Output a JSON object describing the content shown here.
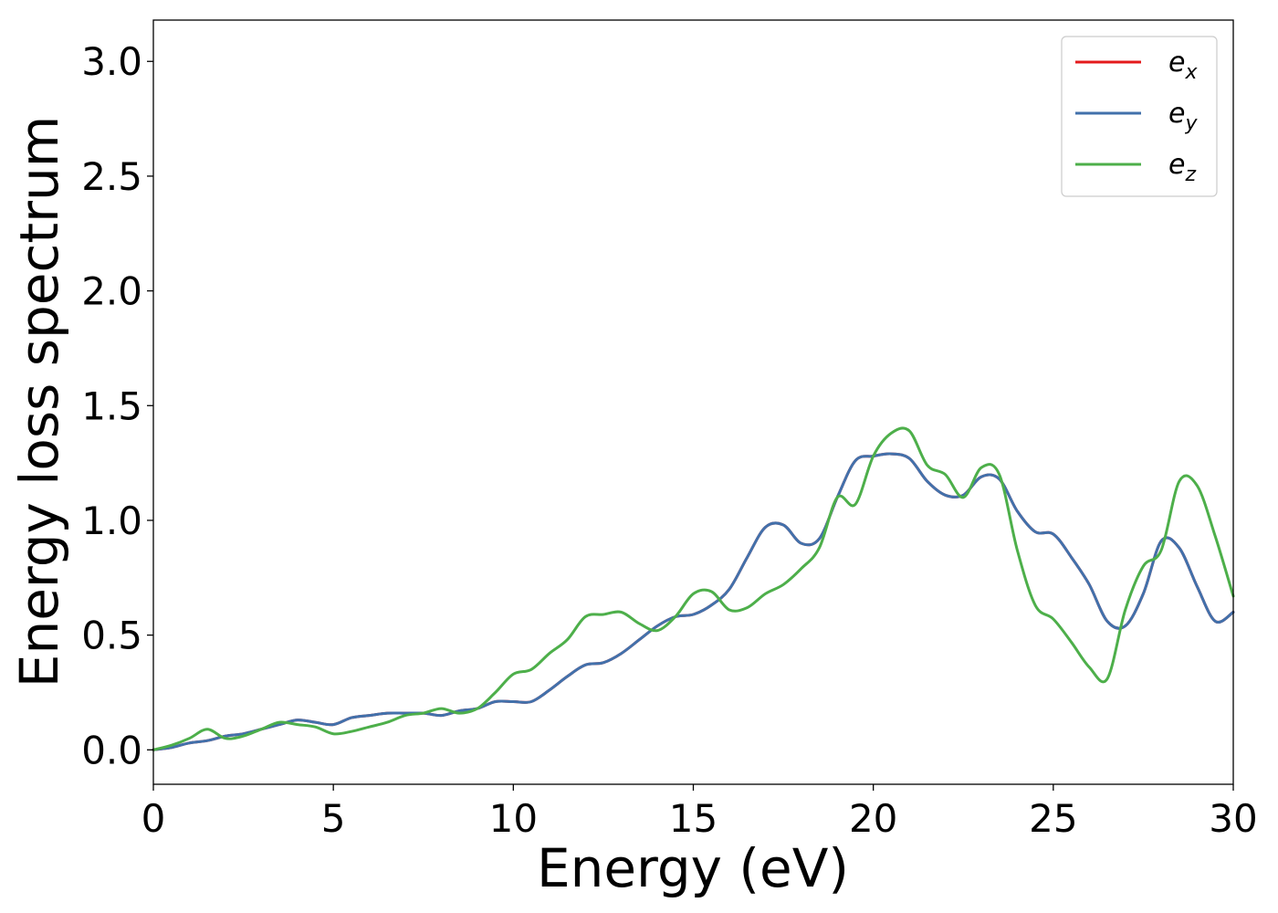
{
  "chart_data": {
    "type": "line",
    "xlabel": "Energy (eV)",
    "ylabel": "Energy loss spectrum",
    "xlim": [
      0,
      30
    ],
    "ylim": [
      -0.15,
      3.18
    ],
    "xticks": [
      0,
      5,
      10,
      15,
      20,
      25,
      30
    ],
    "xtick_labels": [
      "0",
      "5",
      "10",
      "15",
      "20",
      "25",
      "30"
    ],
    "yticks": [
      0.0,
      0.5,
      1.0,
      1.5,
      2.0,
      2.5,
      3.0
    ],
    "ytick_labels": [
      "0.0",
      "0.5",
      "1.0",
      "1.5",
      "2.0",
      "2.5",
      "3.0"
    ],
    "grid": false,
    "legend_position": "top-right",
    "series": [
      {
        "name": "e_x",
        "legend_base": "e",
        "legend_sub": "x",
        "color": "#e41a1c",
        "x": [
          0,
          0.5,
          1,
          1.5,
          2,
          2.5,
          3,
          3.5,
          4,
          4.5,
          5,
          5.5,
          6,
          6.5,
          7,
          7.5,
          8,
          8.5,
          9,
          9.5,
          10,
          10.5,
          11,
          11.5,
          12,
          12.5,
          13,
          13.5,
          14,
          14.5,
          15,
          15.5,
          16,
          16.5,
          17,
          17.5,
          18,
          18.5,
          19,
          19.5,
          20,
          20.5,
          21,
          21.5,
          22,
          22.5,
          23,
          23.5,
          24,
          24.5,
          25,
          25.5,
          26,
          26.5,
          27,
          27.5,
          28,
          28.5,
          29,
          29.5,
          30
        ],
        "y": [
          0.0,
          0.01,
          0.03,
          0.04,
          0.06,
          0.07,
          0.09,
          0.11,
          0.13,
          0.12,
          0.11,
          0.14,
          0.15,
          0.16,
          0.16,
          0.16,
          0.15,
          0.17,
          0.18,
          0.21,
          0.21,
          0.21,
          0.26,
          0.32,
          0.37,
          0.38,
          0.42,
          0.48,
          0.54,
          0.58,
          0.59,
          0.63,
          0.7,
          0.84,
          0.97,
          0.98,
          0.9,
          0.92,
          1.1,
          1.26,
          1.28,
          1.29,
          1.27,
          1.17,
          1.11,
          1.11,
          1.19,
          1.18,
          1.04,
          0.95,
          0.94,
          0.84,
          0.72,
          0.56,
          0.54,
          0.68,
          0.91,
          0.88,
          0.71,
          0.56,
          0.6
        ]
      },
      {
        "name": "e_y",
        "legend_base": "e",
        "legend_sub": "y",
        "color": "#4271ab",
        "x": [
          0,
          0.5,
          1,
          1.5,
          2,
          2.5,
          3,
          3.5,
          4,
          4.5,
          5,
          5.5,
          6,
          6.5,
          7,
          7.5,
          8,
          8.5,
          9,
          9.5,
          10,
          10.5,
          11,
          11.5,
          12,
          12.5,
          13,
          13.5,
          14,
          14.5,
          15,
          15.5,
          16,
          16.5,
          17,
          17.5,
          18,
          18.5,
          19,
          19.5,
          20,
          20.5,
          21,
          21.5,
          22,
          22.5,
          23,
          23.5,
          24,
          24.5,
          25,
          25.5,
          26,
          26.5,
          27,
          27.5,
          28,
          28.5,
          29,
          29.5,
          30
        ],
        "y": [
          0.0,
          0.01,
          0.03,
          0.04,
          0.06,
          0.07,
          0.09,
          0.11,
          0.13,
          0.12,
          0.11,
          0.14,
          0.15,
          0.16,
          0.16,
          0.16,
          0.15,
          0.17,
          0.18,
          0.21,
          0.21,
          0.21,
          0.26,
          0.32,
          0.37,
          0.38,
          0.42,
          0.48,
          0.54,
          0.58,
          0.59,
          0.63,
          0.7,
          0.84,
          0.97,
          0.98,
          0.9,
          0.92,
          1.1,
          1.26,
          1.28,
          1.29,
          1.27,
          1.17,
          1.11,
          1.11,
          1.19,
          1.18,
          1.04,
          0.95,
          0.94,
          0.84,
          0.72,
          0.56,
          0.54,
          0.68,
          0.91,
          0.88,
          0.71,
          0.56,
          0.6
        ]
      },
      {
        "name": "e_z",
        "legend_base": "e",
        "legend_sub": "z",
        "color": "#4daf4a",
        "x": [
          0,
          0.5,
          1,
          1.5,
          2,
          2.5,
          3,
          3.5,
          4,
          4.5,
          5,
          5.5,
          6,
          6.5,
          7,
          7.5,
          8,
          8.5,
          9,
          9.5,
          10,
          10.5,
          11,
          11.5,
          12,
          12.5,
          13,
          13.5,
          14,
          14.5,
          15,
          15.5,
          16,
          16.5,
          17,
          17.5,
          18,
          18.5,
          19,
          19.5,
          20,
          20.5,
          21,
          21.5,
          22,
          22.5,
          23,
          23.5,
          24,
          24.5,
          25,
          25.5,
          26,
          26.5,
          27,
          27.5,
          28,
          28.5,
          29,
          29.5,
          30
        ],
        "y": [
          0.0,
          0.02,
          0.05,
          0.09,
          0.05,
          0.06,
          0.09,
          0.12,
          0.11,
          0.1,
          0.07,
          0.08,
          0.1,
          0.12,
          0.15,
          0.16,
          0.18,
          0.16,
          0.18,
          0.25,
          0.33,
          0.35,
          0.42,
          0.48,
          0.58,
          0.59,
          0.6,
          0.55,
          0.52,
          0.58,
          0.68,
          0.69,
          0.61,
          0.62,
          0.68,
          0.72,
          0.79,
          0.88,
          1.1,
          1.07,
          1.28,
          1.38,
          1.39,
          1.24,
          1.2,
          1.1,
          1.23,
          1.2,
          0.87,
          0.63,
          0.57,
          0.47,
          0.36,
          0.31,
          0.61,
          0.8,
          0.87,
          1.17,
          1.15,
          0.93,
          0.67
        ]
      }
    ]
  }
}
